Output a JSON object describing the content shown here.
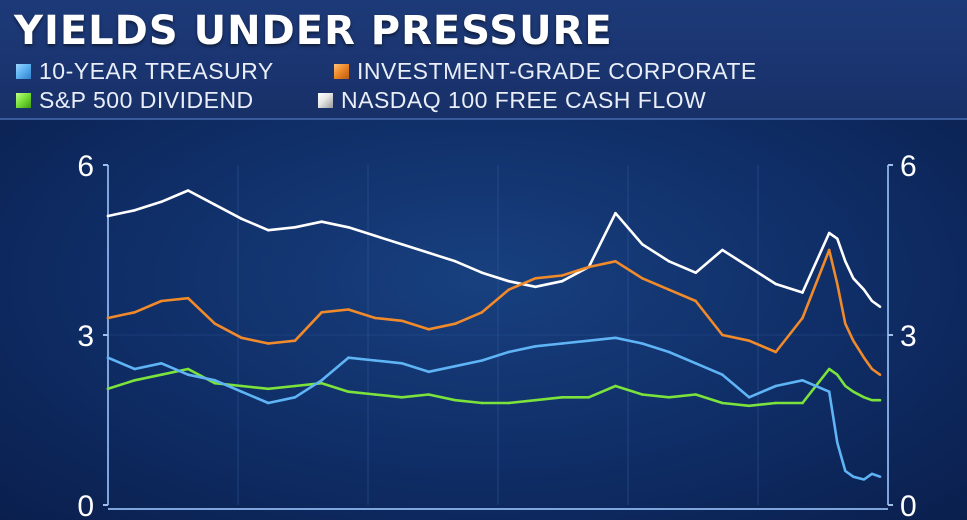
{
  "title": "YIELDS UNDER PRESSURE",
  "colors": {
    "treasury": "#5fb4f5",
    "corporate": "#f08a2a",
    "dividend": "#7be33b",
    "fcf": "#ffffff"
  },
  "legend": [
    {
      "label": "10-YEAR TREASURY",
      "color": "#5fb4f5"
    },
    {
      "label": "INVESTMENT-GRADE CORPORATE",
      "color": "#f08a2a"
    },
    {
      "label": "S&P 500 DIVIDEND",
      "color": "#7be33b"
    },
    {
      "label": "NASDAQ 100 FREE CASH FLOW",
      "color": "#ffffff"
    }
  ],
  "chart_data": {
    "type": "line",
    "title": "YIELDS UNDER PRESSURE",
    "xlabel": "",
    "ylabel": "",
    "ylim": [
      0,
      6
    ],
    "yticks": [
      {
        "value": 6,
        "label": "6"
      },
      {
        "value": 3,
        "label": "3"
      },
      {
        "value": 0,
        "label": "0"
      }
    ],
    "grid": true,
    "legend_position": "top",
    "x_points": 28,
    "series": [
      {
        "name": "10-YEAR TREASURY",
        "color": "#5fb4f5",
        "values": [
          2.6,
          2.4,
          2.5,
          2.3,
          2.2,
          2.0,
          1.8,
          1.9,
          2.2,
          2.6,
          2.55,
          2.5,
          2.35,
          2.45,
          2.55,
          2.7,
          2.8,
          2.85,
          2.9,
          2.95,
          2.85,
          2.7,
          2.5,
          2.3,
          1.9,
          2.1,
          2.2,
          2.0
        ]
      },
      {
        "name": "INVESTMENT-GRADE CORPORATE",
        "color": "#f08a2a",
        "values": [
          3.3,
          3.4,
          3.6,
          3.65,
          3.2,
          2.95,
          2.85,
          2.9,
          3.4,
          3.45,
          3.3,
          3.25,
          3.1,
          3.2,
          3.4,
          3.8,
          4.0,
          4.05,
          4.2,
          4.3,
          4.0,
          3.8,
          3.6,
          3.0,
          2.9,
          2.7,
          3.3,
          4.5
        ]
      },
      {
        "name": "S&P 500 DIVIDEND",
        "color": "#7be33b",
        "values": [
          2.05,
          2.2,
          2.3,
          2.4,
          2.15,
          2.1,
          2.05,
          2.1,
          2.15,
          2.0,
          1.95,
          1.9,
          1.95,
          1.85,
          1.8,
          1.8,
          1.85,
          1.9,
          1.9,
          2.1,
          1.95,
          1.9,
          1.95,
          1.8,
          1.75,
          1.8,
          1.8,
          2.4
        ]
      },
      {
        "name": "NASDAQ 100 FREE CASH FLOW",
        "color": "#ffffff",
        "values": [
          5.1,
          5.2,
          5.35,
          5.55,
          5.3,
          5.05,
          4.85,
          4.9,
          5.0,
          4.9,
          4.75,
          4.6,
          4.45,
          4.3,
          4.1,
          3.95,
          3.85,
          3.95,
          4.2,
          5.15,
          4.6,
          4.3,
          4.1,
          4.5,
          4.2,
          3.9,
          3.75,
          4.8
        ]
      }
    ],
    "tail_x": [
      27,
      27.3,
      27.6,
      27.9,
      28.3,
      28.6,
      28.9
    ],
    "tail_series": [
      {
        "name": "10-YEAR TREASURY",
        "values": [
          2.0,
          1.1,
          0.6,
          0.5,
          0.45,
          0.55,
          0.5
        ]
      },
      {
        "name": "INVESTMENT-GRADE CORPORATE",
        "values": [
          4.5,
          3.9,
          3.2,
          2.9,
          2.6,
          2.4,
          2.3
        ]
      },
      {
        "name": "S&P 500 DIVIDEND",
        "values": [
          2.4,
          2.3,
          2.1,
          2.0,
          1.9,
          1.85,
          1.85
        ]
      },
      {
        "name": "NASDAQ 100 FREE CASH FLOW",
        "values": [
          4.8,
          4.7,
          4.3,
          4.0,
          3.8,
          3.6,
          3.5
        ]
      }
    ]
  }
}
